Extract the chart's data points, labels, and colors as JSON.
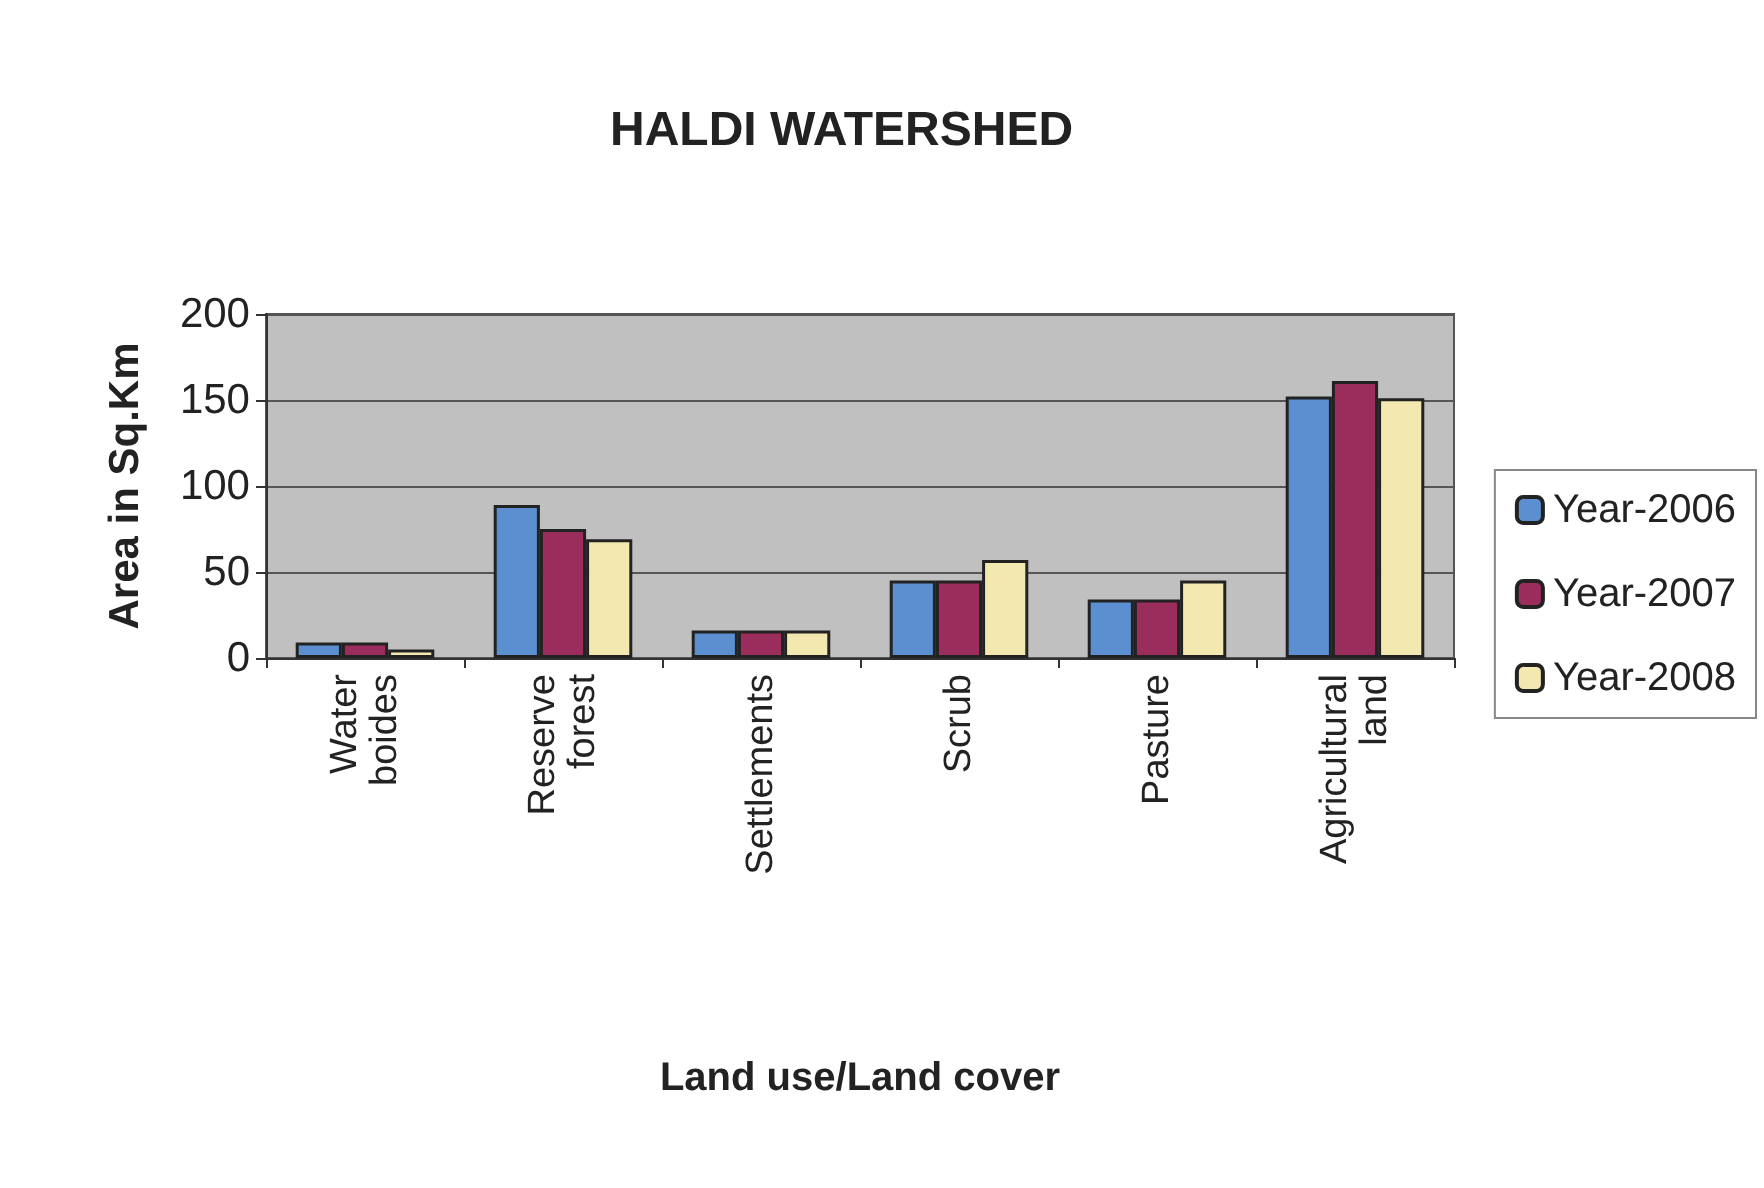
{
  "chart_data": {
    "type": "bar",
    "title": "HALDI WATERSHED",
    "xlabel": "Land use/Land cover",
    "ylabel": "Area in Sq.Km",
    "categories": [
      "Water boides",
      "Reserve forest",
      "Settlements",
      "Scrub",
      "Pasture",
      "Agricultural land"
    ],
    "series": [
      {
        "name": "Year-2006",
        "color": "#5b8fd0",
        "values": [
          9,
          89,
          16,
          45,
          34,
          152
        ]
      },
      {
        "name": "Year-2007",
        "color": "#9b2d5c",
        "values": [
          9,
          75,
          16,
          45,
          34,
          161
        ]
      },
      {
        "name": "Year-2008",
        "color": "#f3e9b0",
        "values": [
          5,
          69,
          16,
          57,
          45,
          151
        ]
      }
    ],
    "ylim": [
      0,
      200
    ],
    "yticks": [
      0,
      50,
      100,
      150,
      200
    ],
    "grid": "y",
    "legend": "right"
  }
}
